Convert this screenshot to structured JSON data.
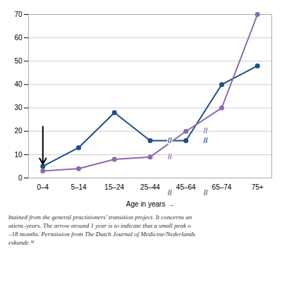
{
  "chart_data": {
    "type": "line",
    "x_label": "Age in years",
    "categories": [
      "0–4",
      "5–14",
      "15–24",
      "25–44",
      "45–64",
      "65–74",
      "75+"
    ],
    "xlim": [
      -0.4,
      6.4
    ],
    "series": [
      {
        "color": "#1b4f8a",
        "marker": "circle",
        "values": [
          5,
          13,
          28,
          16,
          16,
          40,
          48
        ]
      },
      {
        "color": "#8b6aae",
        "marker": "circle",
        "values": [
          3,
          4,
          8,
          9,
          20,
          30,
          70
        ]
      }
    ],
    "ylim": [
      0,
      70
    ],
    "yticks": [
      0,
      10,
      20,
      30,
      40,
      50,
      60,
      70
    ],
    "grid": true,
    "annotations": [
      {
        "type": "arrow",
        "x": 0,
        "y_start": 22,
        "y_end": 6,
        "color": "black"
      },
      {
        "text": "//",
        "x": 3.55,
        "y": -6.5,
        "color": "#666666"
      },
      {
        "text": "//",
        "x": 4.55,
        "y": -6.5,
        "color": "#666666"
      },
      {
        "text": "//",
        "x": 3.55,
        "y": 16,
        "color": "#1b4f8a"
      },
      {
        "text": "//",
        "x": 4.55,
        "y": 16,
        "color": "#1b4f8a"
      },
      {
        "text": "//",
        "x": 3.55,
        "y": 9,
        "color": "#8b6aae"
      },
      {
        "text": "//",
        "x": 4.55,
        "y": 20,
        "color": "#8b6aae"
      }
    ],
    "caption": [
      "btained from the general practitioners’ transition project. It concerns an",
      "atient–years. The arrow around 1 year is to indicate that a small peak o",
      "–18 months. Permission from The Dutch Journal of Medicine/Nederlands",
      "eskunde.ᴹ"
    ]
  }
}
